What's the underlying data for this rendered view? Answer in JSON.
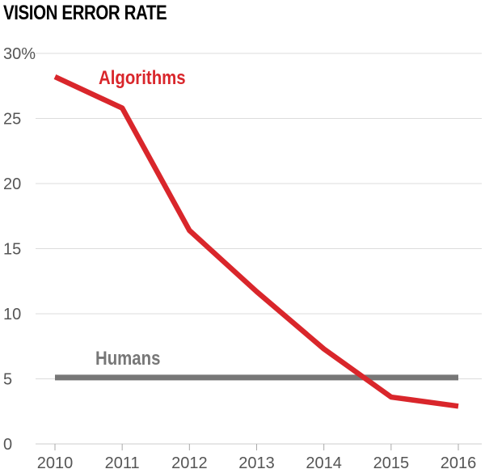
{
  "chart_data": {
    "type": "line",
    "title": "VISION ERROR RATE",
    "xlabel": "",
    "ylabel": "",
    "x": [
      2010,
      2011,
      2012,
      2013,
      2014,
      2015,
      2016
    ],
    "x_tick_labels": [
      "2010",
      "2011",
      "2012",
      "2013",
      "2014",
      "2015",
      "2016"
    ],
    "xlim": [
      2010,
      2016
    ],
    "y_tick_labels": [
      "0",
      "5",
      "10",
      "15",
      "20",
      "25",
      "30%"
    ],
    "y_ticks": [
      0,
      5,
      10,
      15,
      20,
      25,
      30
    ],
    "ylim": [
      0,
      30
    ],
    "grid": true,
    "series": [
      {
        "name": "Algorithms",
        "color": "#d9262b",
        "x": [
          2010,
          2011,
          2012,
          2013,
          2014,
          2015,
          2016
        ],
        "values": [
          28.2,
          25.8,
          16.4,
          11.7,
          7.3,
          3.6,
          2.9
        ]
      },
      {
        "name": "Humans",
        "color": "#777777",
        "x": [
          2010,
          2016
        ],
        "values": [
          5.1,
          5.1
        ]
      }
    ]
  }
}
